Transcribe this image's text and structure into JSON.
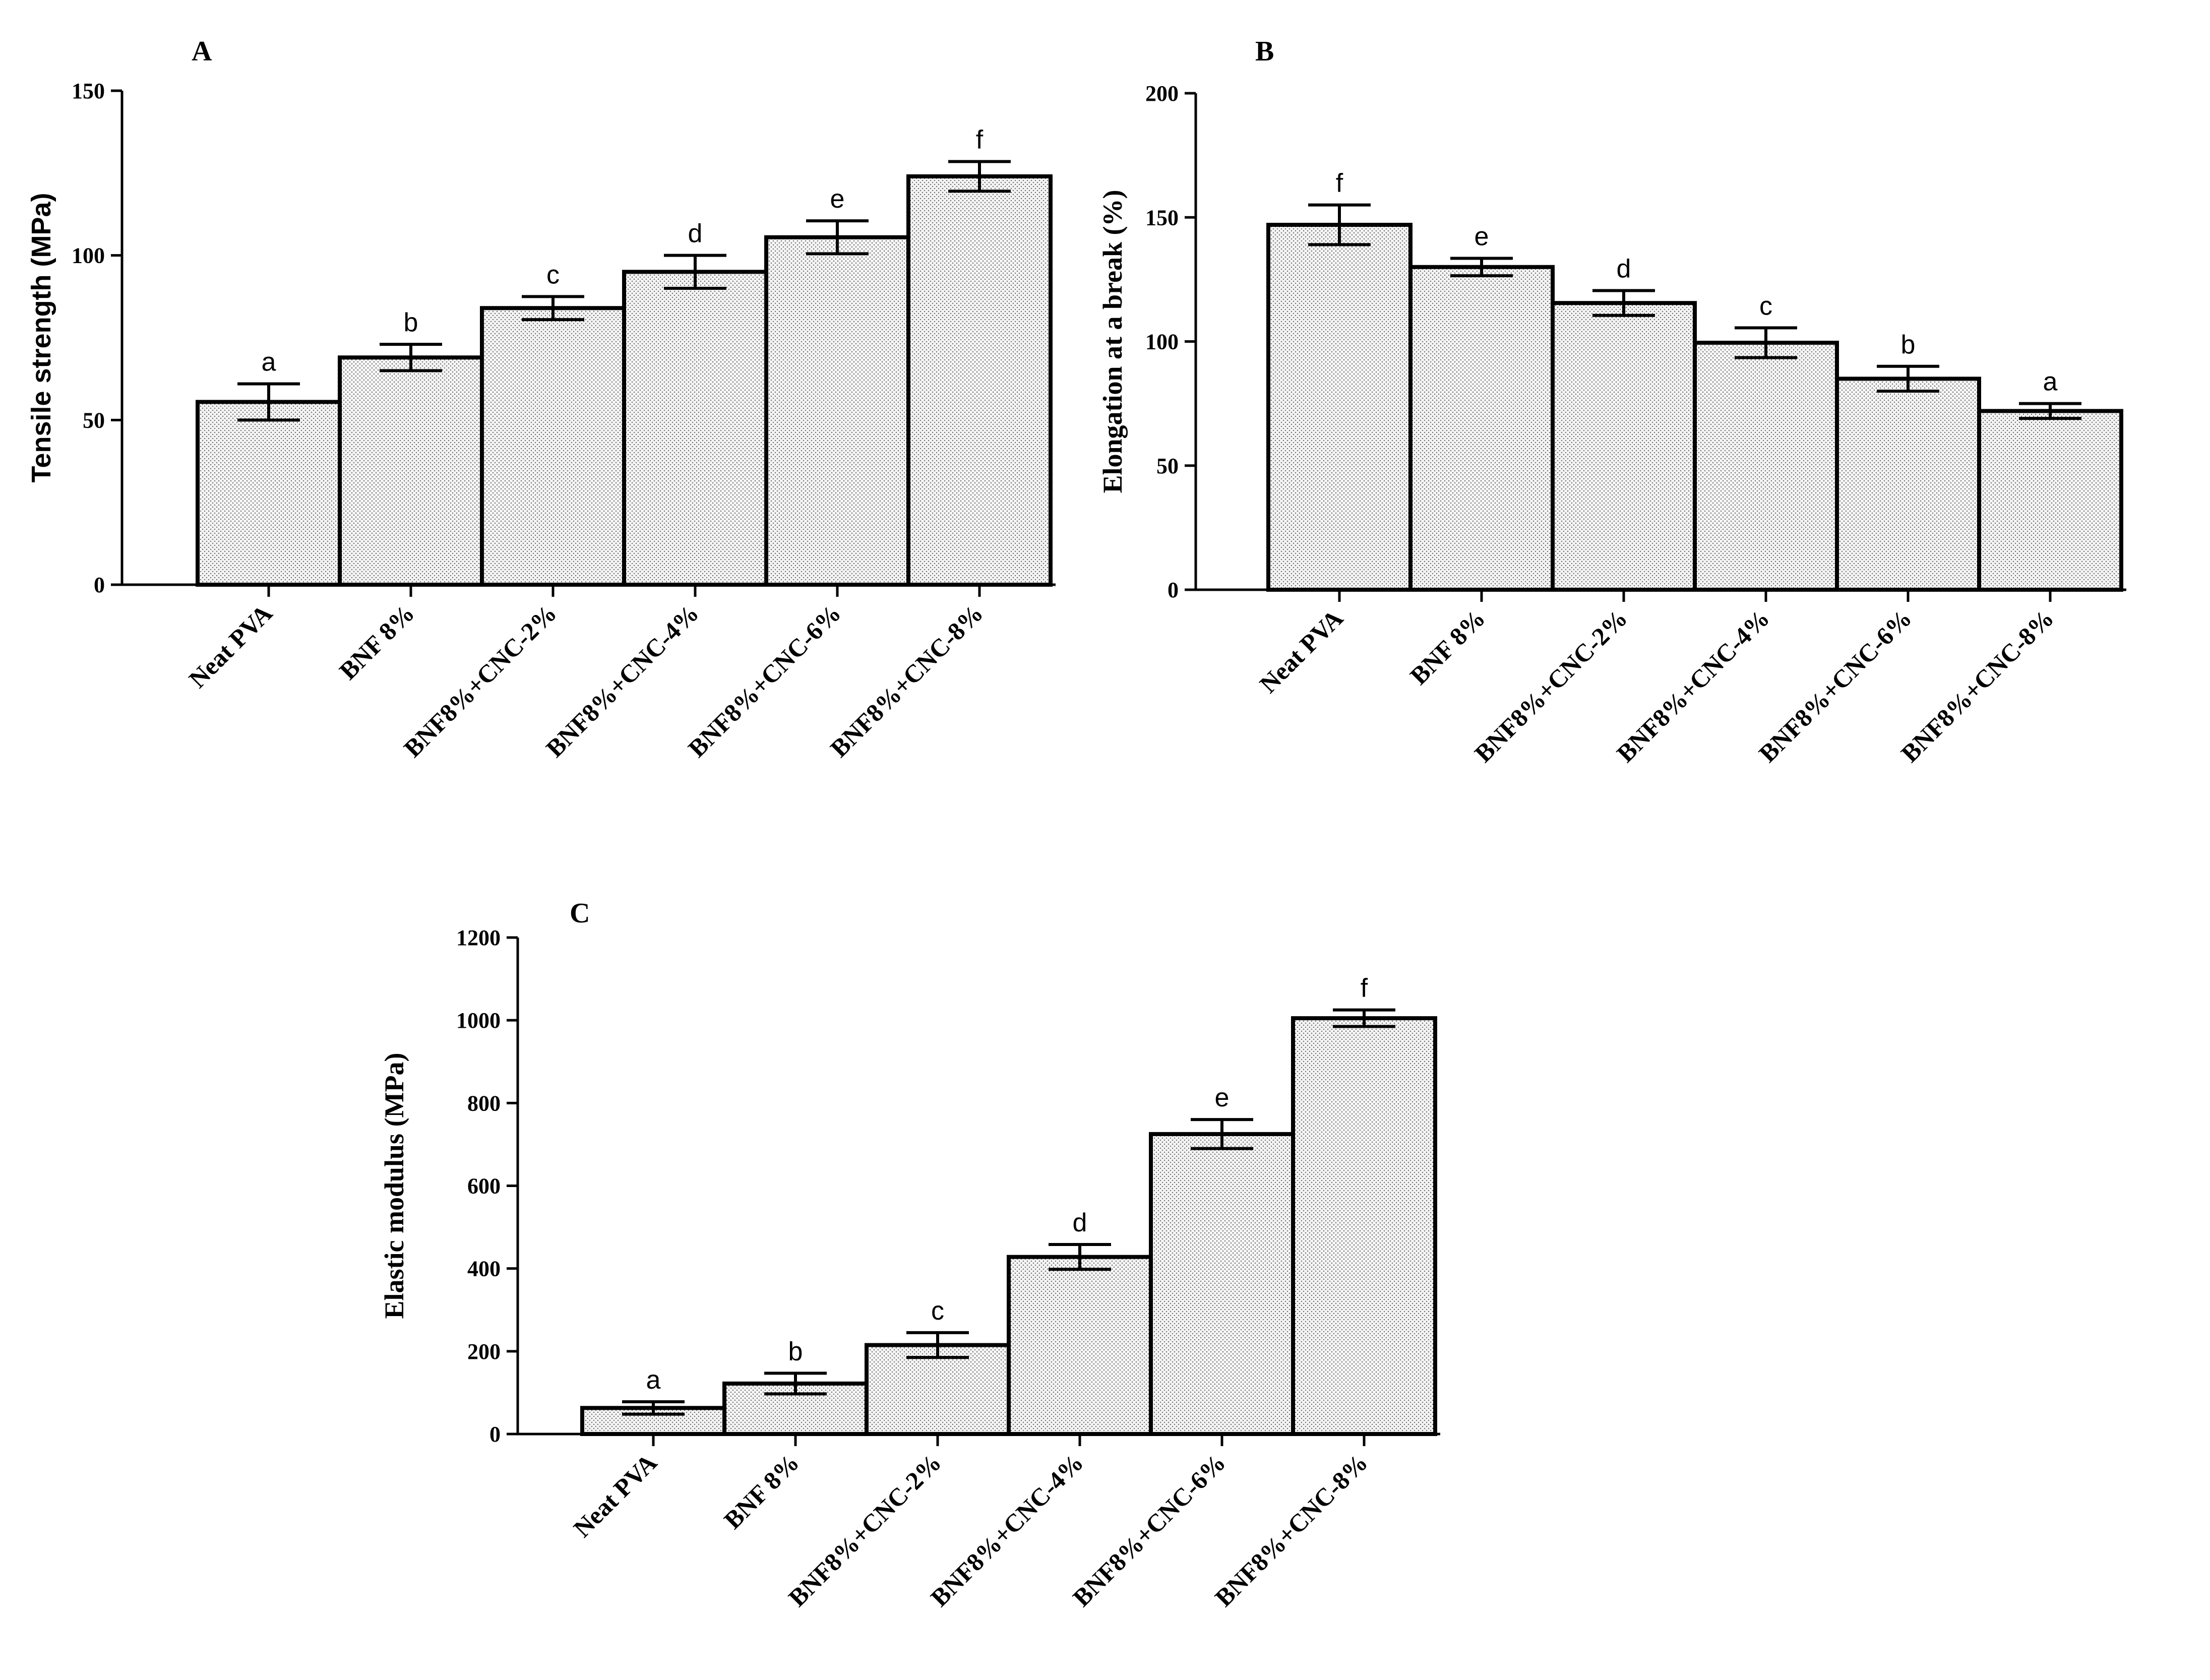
{
  "chart_data": [
    {
      "panel": "A",
      "type": "bar",
      "title": "",
      "xlabel": "",
      "ylabel": "Tensile strength (MPa)",
      "ylim": [
        0,
        150
      ],
      "yticks": [
        "0",
        "50",
        "100",
        "150"
      ],
      "grid": false,
      "categories": [
        "Neat PVA",
        "BNF 8%",
        "BNF8%+CNC-2%",
        "BNF8%+CNC-4%",
        "BNF8%+CNC-6%",
        "BNF8%+CNC-8%"
      ],
      "values": [
        55.5,
        69,
        84,
        95,
        105.5,
        124
      ],
      "errors": [
        5.5,
        4,
        3.5,
        5,
        5,
        4.5
      ],
      "annotations": [
        "a",
        "b",
        "c",
        "d",
        "e",
        "f"
      ]
    },
    {
      "panel": "B",
      "type": "bar",
      "title": "",
      "xlabel": "",
      "ylabel": "Elongation at a break (%)",
      "ylim": [
        0,
        200
      ],
      "yticks": [
        "0",
        "50",
        "100",
        "150",
        "200"
      ],
      "grid": false,
      "categories": [
        "Neat PVA",
        "BNF 8%",
        "BNF8%+CNC-2%",
        "BNF8%+CNC-4%",
        "BNF8%+CNC-6%",
        "BNF8%+CNC-8%"
      ],
      "values": [
        147,
        130,
        115.5,
        99.5,
        85,
        72
      ],
      "errors": [
        8,
        3.5,
        5,
        6,
        5,
        3
      ],
      "annotations": [
        "f",
        "e",
        "d",
        "c",
        "b",
        "a"
      ]
    },
    {
      "panel": "C",
      "type": "bar",
      "title": "",
      "xlabel": "",
      "ylabel": "Elastic modulus (MPa)",
      "ylim": [
        0,
        1200
      ],
      "yticks": [
        "0",
        "200",
        "400",
        "600",
        "800",
        "1000",
        "1200"
      ],
      "grid": false,
      "categories": [
        "Neat PVA",
        "BNF 8%",
        "BNF8%+CNC-2%",
        "BNF8%+CNC-4%",
        "BNF8%+CNC-6%",
        "BNF8%+CNC-8%"
      ],
      "values": [
        63,
        122,
        215,
        428,
        725,
        1005
      ],
      "errors": [
        15,
        25,
        30,
        30,
        35,
        20
      ],
      "annotations": [
        "a",
        "b",
        "c",
        "d",
        "e",
        "f"
      ]
    }
  ],
  "colors": {
    "bar_fill": "#f4f4f4",
    "dots": "#6b6b6b",
    "stroke": "#000000"
  }
}
